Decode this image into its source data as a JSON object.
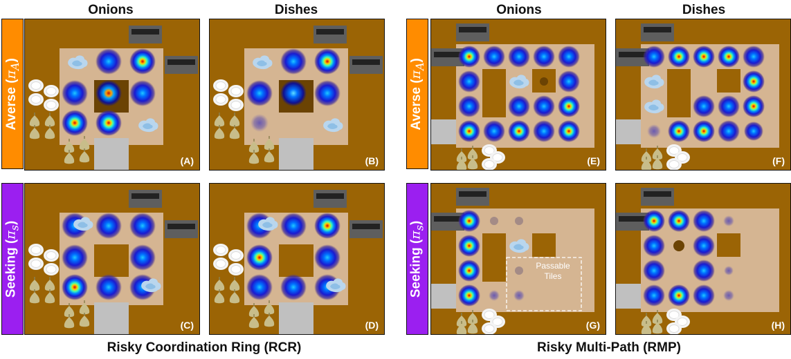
{
  "column_headers": [
    "Onions",
    "Dishes",
    "Onions",
    "Dishes"
  ],
  "row_labels": {
    "averse": {
      "text": "Averse (",
      "symbol": "π",
      "sub": "A",
      "close": ")",
      "color": "#ff8c00"
    },
    "seeking": {
      "text": "Seeking (",
      "symbol": "π",
      "sub": "s",
      "close": ")",
      "color": "#9b1ff0"
    }
  },
  "panel_letters": [
    "(A)",
    "(B)",
    "(C)",
    "(D)",
    "(E)",
    "(F)",
    "(G)",
    "(H)"
  ],
  "layout_titles": {
    "rcr": "Risky Coordination Ring (RCR)",
    "rmp": "Risky Multi-Path (RMP)"
  },
  "passable_tiles_label": [
    "Passable",
    "Tiles"
  ],
  "colors": {
    "wall": "#9b6405",
    "floor": "#d5b592",
    "counter_gray": "#c0c0c0",
    "pot_dark": "#6b4303",
    "averse_accent": "#ff8c00",
    "seeking_accent": "#9b1ff0"
  }
}
